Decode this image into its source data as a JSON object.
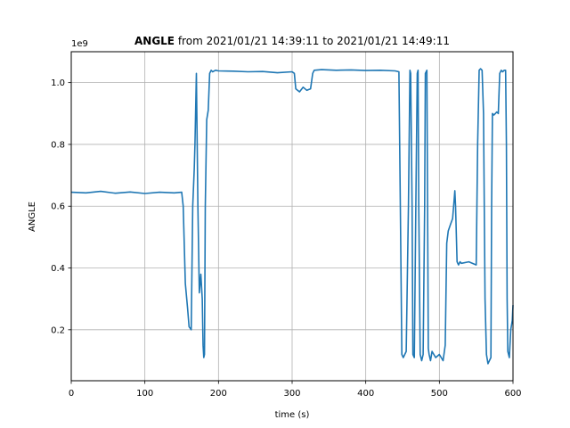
{
  "chart_data": {
    "type": "line",
    "title_bold": "ANGLE",
    "title_rest": " from 2021/01/21 14:39:11 to 2021/01/21 14:49:11",
    "xlabel": "time (s)",
    "ylabel": "ANGLE",
    "offset_label": "1e9",
    "xlim": [
      0,
      600
    ],
    "ylim": [
      0.035,
      1.1
    ],
    "xticks": [
      0,
      100,
      200,
      300,
      400,
      500,
      600
    ],
    "yticks": [
      0.2,
      0.4,
      0.6,
      0.8,
      1.0
    ],
    "ytick_labels": [
      "0.2",
      "0.4",
      "0.6",
      "0.8",
      "1.0"
    ],
    "grid": true,
    "line_color": "#1f77b4",
    "series": [
      {
        "x": [
          0,
          20,
          40,
          60,
          80,
          100,
          120,
          140,
          150,
          152,
          155,
          158,
          160,
          163,
          165,
          167,
          168,
          170,
          172,
          174,
          176,
          178,
          179,
          180,
          181,
          182,
          184,
          186,
          188,
          190,
          192,
          196,
          200,
          220,
          240,
          260,
          280,
          300,
          303,
          305,
          310,
          315,
          320,
          325,
          328,
          330,
          340,
          360,
          380,
          400,
          420,
          440,
          445,
          447,
          449,
          451,
          455,
          458,
          460,
          461,
          463,
          464,
          466,
          468,
          470,
          471,
          472,
          474,
          476,
          478,
          480,
          481,
          483,
          484,
          485,
          486,
          488,
          490,
          495,
          500,
          505,
          508,
          510,
          512,
          515,
          518,
          520,
          521,
          522,
          524,
          526,
          528,
          530,
          540,
          550,
          552,
          554,
          556,
          558,
          560,
          562,
          564,
          566,
          568,
          570,
          571,
          572,
          574,
          576,
          578,
          580,
          582,
          584,
          586,
          588,
          590,
          591,
          592,
          593,
          594,
          595,
          597,
          599,
          600
        ],
        "y": [
          0.645,
          0.643,
          0.648,
          0.642,
          0.646,
          0.641,
          0.645,
          0.643,
          0.645,
          0.6,
          0.35,
          0.27,
          0.21,
          0.2,
          0.6,
          0.72,
          0.8,
          1.03,
          0.6,
          0.32,
          0.38,
          0.3,
          0.15,
          0.11,
          0.12,
          0.6,
          0.88,
          0.91,
          1.03,
          1.04,
          1.035,
          1.04,
          1.038,
          1.037,
          1.035,
          1.036,
          1.032,
          1.035,
          1.03,
          0.98,
          0.97,
          0.985,
          0.975,
          0.98,
          1.03,
          1.04,
          1.042,
          1.04,
          1.041,
          1.039,
          1.04,
          1.038,
          1.035,
          0.6,
          0.12,
          0.11,
          0.13,
          0.6,
          1.04,
          1.03,
          0.6,
          0.12,
          0.11,
          0.6,
          1.03,
          1.04,
          0.6,
          0.12,
          0.1,
          0.12,
          0.6,
          1.03,
          1.04,
          0.6,
          0.14,
          0.12,
          0.1,
          0.13,
          0.11,
          0.12,
          0.1,
          0.15,
          0.48,
          0.52,
          0.54,
          0.56,
          0.62,
          0.65,
          0.6,
          0.42,
          0.41,
          0.42,
          0.415,
          0.42,
          0.41,
          0.8,
          1.04,
          1.045,
          1.04,
          0.9,
          0.3,
          0.12,
          0.09,
          0.1,
          0.11,
          0.6,
          0.9,
          0.895,
          0.9,
          0.905,
          0.9,
          1.03,
          1.04,
          1.035,
          1.04,
          1.04,
          0.8,
          0.3,
          0.13,
          0.12,
          0.11,
          0.2,
          0.23,
          0.28
        ]
      }
    ]
  }
}
